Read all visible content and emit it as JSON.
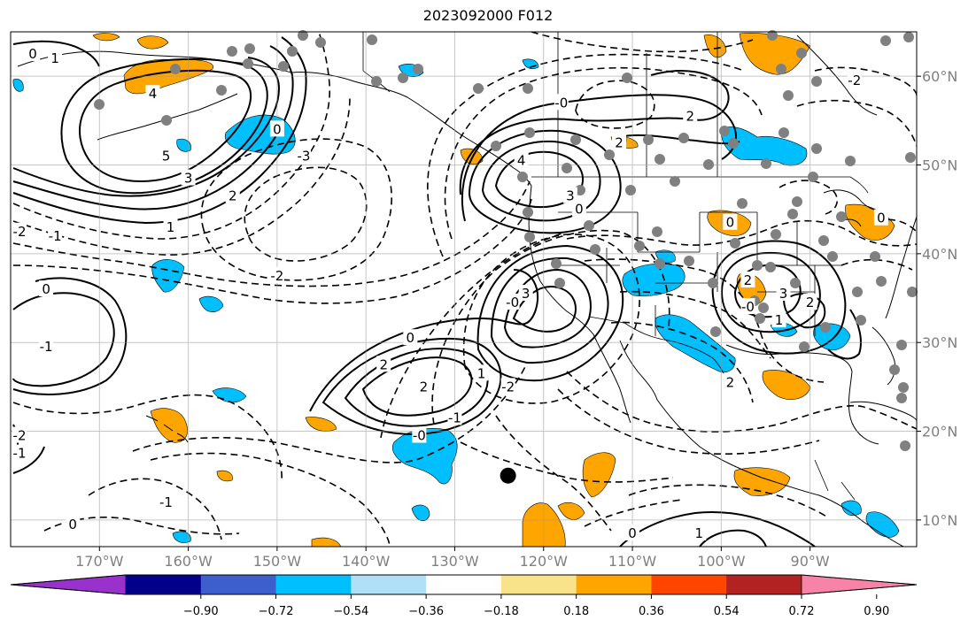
{
  "title": "2023092000 F012",
  "map": {
    "projection": "equirectangular",
    "lon_range": [
      -180,
      -78
    ],
    "lat_range": [
      7,
      65
    ],
    "lon_ticks": [
      {
        "lon": -170,
        "label": "170°W"
      },
      {
        "lon": -160,
        "label": "160°W"
      },
      {
        "lon": -150,
        "label": "150°W"
      },
      {
        "lon": -140,
        "label": "140°W"
      },
      {
        "lon": -130,
        "label": "130°W"
      },
      {
        "lon": -120,
        "label": "120°W"
      },
      {
        "lon": -110,
        "label": "110°W"
      },
      {
        "lon": -100,
        "label": "100°W"
      },
      {
        "lon": -90,
        "label": "90°W"
      }
    ],
    "lat_ticks": [
      {
        "lat": 10,
        "label": "10°N"
      },
      {
        "lat": 20,
        "label": "20°N"
      },
      {
        "lat": 30,
        "label": "30°N"
      },
      {
        "lat": 40,
        "label": "40°N"
      },
      {
        "lat": 50,
        "label": "50°N"
      },
      {
        "lat": 60,
        "label": "60°N"
      }
    ],
    "gridlines": true,
    "marker": {
      "lon": -124,
      "lat": 15
    },
    "colors": {
      "positive_fill": "#ffa500",
      "negative_fill": "#00bfff",
      "contour": "#000000",
      "station_dot": "#808080"
    },
    "contour_labels": [
      {
        "text": "0",
        "lon": -177.5,
        "lat": 62.5
      },
      {
        "text": "1",
        "lon": -175,
        "lat": 62
      },
      {
        "text": "4",
        "lon": -164,
        "lat": 58
      },
      {
        "text": "5",
        "lon": -162.5,
        "lat": 51
      },
      {
        "text": "3",
        "lon": -160,
        "lat": 48.5
      },
      {
        "text": "2",
        "lon": -155,
        "lat": 46.5
      },
      {
        "text": "1",
        "lon": -162,
        "lat": 43
      },
      {
        "text": "-2",
        "lon": -179,
        "lat": 42.5
      },
      {
        "text": "-1",
        "lon": -175,
        "lat": 42
      },
      {
        "text": "0",
        "lon": -150,
        "lat": 54
      },
      {
        "text": "-3",
        "lon": -147,
        "lat": 51
      },
      {
        "text": "-2",
        "lon": -150,
        "lat": 37.5
      },
      {
        "text": "0",
        "lon": -176,
        "lat": 36
      },
      {
        "text": "-1",
        "lon": -176,
        "lat": 29.5
      },
      {
        "text": "-2",
        "lon": -179,
        "lat": 19.5
      },
      {
        "text": "-1",
        "lon": -179,
        "lat": 17.5
      },
      {
        "text": "-1",
        "lon": -162.5,
        "lat": 12
      },
      {
        "text": "0",
        "lon": -173,
        "lat": 9.5
      },
      {
        "text": "0",
        "lon": -135,
        "lat": 30.5
      },
      {
        "text": "2",
        "lon": -138,
        "lat": 27.5
      },
      {
        "text": "2",
        "lon": -133.5,
        "lat": 25
      },
      {
        "text": "1",
        "lon": -127,
        "lat": 26.5
      },
      {
        "text": "-2",
        "lon": -124,
        "lat": 25
      },
      {
        "text": "-1",
        "lon": -130,
        "lat": 21.5
      },
      {
        "text": "-0",
        "lon": -134,
        "lat": 19.5
      },
      {
        "text": "3",
        "lon": -122,
        "lat": 35.5
      },
      {
        "text": "-0",
        "lon": -123.5,
        "lat": 34.5
      },
      {
        "text": "4",
        "lon": -122.5,
        "lat": 50.5
      },
      {
        "text": "3",
        "lon": -117,
        "lat": 46.5
      },
      {
        "text": "0",
        "lon": -116,
        "lat": 45
      },
      {
        "text": "2",
        "lon": -111.5,
        "lat": 52.5
      },
      {
        "text": "-0",
        "lon": -118,
        "lat": 57
      },
      {
        "text": "2",
        "lon": -103.5,
        "lat": 55.5
      },
      {
        "text": "0",
        "lon": -99,
        "lat": 43.5
      },
      {
        "text": "0",
        "lon": -82,
        "lat": 44
      },
      {
        "text": "2",
        "lon": -97,
        "lat": 37
      },
      {
        "text": "3",
        "lon": -93,
        "lat": 35.5
      },
      {
        "text": "2",
        "lon": -90,
        "lat": 34.5
      },
      {
        "text": "-0",
        "lon": -97,
        "lat": 34
      },
      {
        "text": "1",
        "lon": -93.5,
        "lat": 32.5
      },
      {
        "text": "2",
        "lon": -99,
        "lat": 25.5
      },
      {
        "text": "0",
        "lon": -110,
        "lat": 8.5
      },
      {
        "text": "1",
        "lon": -102.5,
        "lat": 8.5
      },
      {
        "text": "-2",
        "lon": -85,
        "lat": 59.5
      }
    ]
  },
  "colorbar": {
    "colors": [
      "#9932cc",
      "#00008b",
      "#3c5fcd",
      "#00bfff",
      "#b0e0f8",
      "#ffffff",
      "#f8e38a",
      "#ffa500",
      "#ff4500",
      "#b22222",
      "#f784a8"
    ],
    "tick_labels": [
      "−0.90",
      "−0.72",
      "−0.54",
      "−0.36",
      "−0.18",
      "0.18",
      "0.36",
      "0.54",
      "0.72",
      "0.90"
    ]
  }
}
